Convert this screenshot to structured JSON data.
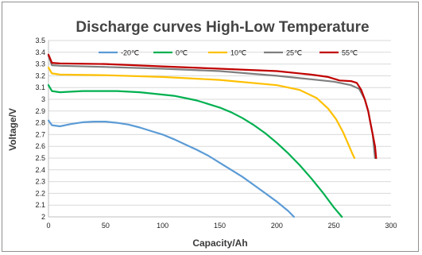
{
  "chart_data": {
    "type": "line",
    "title": "Discharge curves High-Low Temperature",
    "xlabel": "Capacity/Ah",
    "ylabel": "Voltage/V",
    "xlim": [
      0,
      300
    ],
    "ylim": [
      2,
      3.5
    ],
    "xticks": [
      "0",
      "50",
      "100",
      "150",
      "200",
      "250",
      "300"
    ],
    "yticks": [
      "2",
      "2.1",
      "2.2",
      "2.3",
      "2.4",
      "2.5",
      "2.6",
      "2.7",
      "2.8",
      "2.9",
      "3",
      "3.1",
      "3.2",
      "3.3",
      "3.4",
      "3.5"
    ],
    "grid": "horizontal",
    "legend_position": "top",
    "series": [
      {
        "name": "-20℃",
        "color": "#5b9bd5",
        "x": [
          0,
          3,
          10,
          20,
          30,
          40,
          50,
          60,
          70,
          80,
          90,
          100,
          110,
          120,
          130,
          140,
          150,
          160,
          170,
          180,
          190,
          200,
          210,
          215
        ],
        "y": [
          2.82,
          2.78,
          2.77,
          2.79,
          2.805,
          2.81,
          2.81,
          2.8,
          2.785,
          2.76,
          2.73,
          2.7,
          2.66,
          2.615,
          2.57,
          2.52,
          2.46,
          2.4,
          2.34,
          2.27,
          2.2,
          2.13,
          2.05,
          2.0
        ]
      },
      {
        "name": "0℃",
        "color": "#00b050",
        "x": [
          0,
          3,
          10,
          20,
          30,
          40,
          50,
          60,
          70,
          80,
          90,
          100,
          110,
          120,
          130,
          140,
          150,
          160,
          170,
          180,
          190,
          200,
          210,
          220,
          230,
          240,
          250,
          257
        ],
        "y": [
          3.12,
          3.07,
          3.06,
          3.065,
          3.07,
          3.07,
          3.07,
          3.07,
          3.065,
          3.06,
          3.05,
          3.04,
          3.03,
          3.01,
          2.99,
          2.96,
          2.93,
          2.89,
          2.84,
          2.78,
          2.71,
          2.63,
          2.54,
          2.44,
          2.33,
          2.21,
          2.08,
          2.0
        ]
      },
      {
        "name": "10℃",
        "color": "#ffc000",
        "x": [
          0,
          3,
          10,
          50,
          100,
          150,
          200,
          220,
          235,
          245,
          252,
          258,
          263,
          266,
          268
        ],
        "y": [
          3.27,
          3.22,
          3.21,
          3.205,
          3.19,
          3.165,
          3.12,
          3.08,
          3.01,
          2.92,
          2.83,
          2.72,
          2.61,
          2.54,
          2.5
        ]
      },
      {
        "name": "25℃",
        "color": "#7f7f7f",
        "x": [
          0,
          3,
          10,
          50,
          100,
          150,
          200,
          230,
          250,
          265,
          272,
          277,
          280,
          282,
          284,
          285,
          286
        ],
        "y": [
          3.37,
          3.29,
          3.285,
          3.275,
          3.26,
          3.24,
          3.2,
          3.17,
          3.15,
          3.12,
          3.09,
          3.0,
          2.9,
          2.8,
          2.7,
          2.6,
          2.5
        ]
      },
      {
        "name": "55℃",
        "color": "#c00000",
        "x": [
          0,
          3,
          10,
          50,
          100,
          150,
          200,
          230,
          245,
          255,
          265,
          270,
          274,
          277,
          280,
          282,
          284,
          286,
          287
        ],
        "y": [
          3.38,
          3.31,
          3.305,
          3.3,
          3.28,
          3.26,
          3.24,
          3.21,
          3.19,
          3.16,
          3.155,
          3.14,
          3.08,
          3.0,
          2.9,
          2.8,
          2.7,
          2.6,
          2.5
        ]
      }
    ]
  }
}
